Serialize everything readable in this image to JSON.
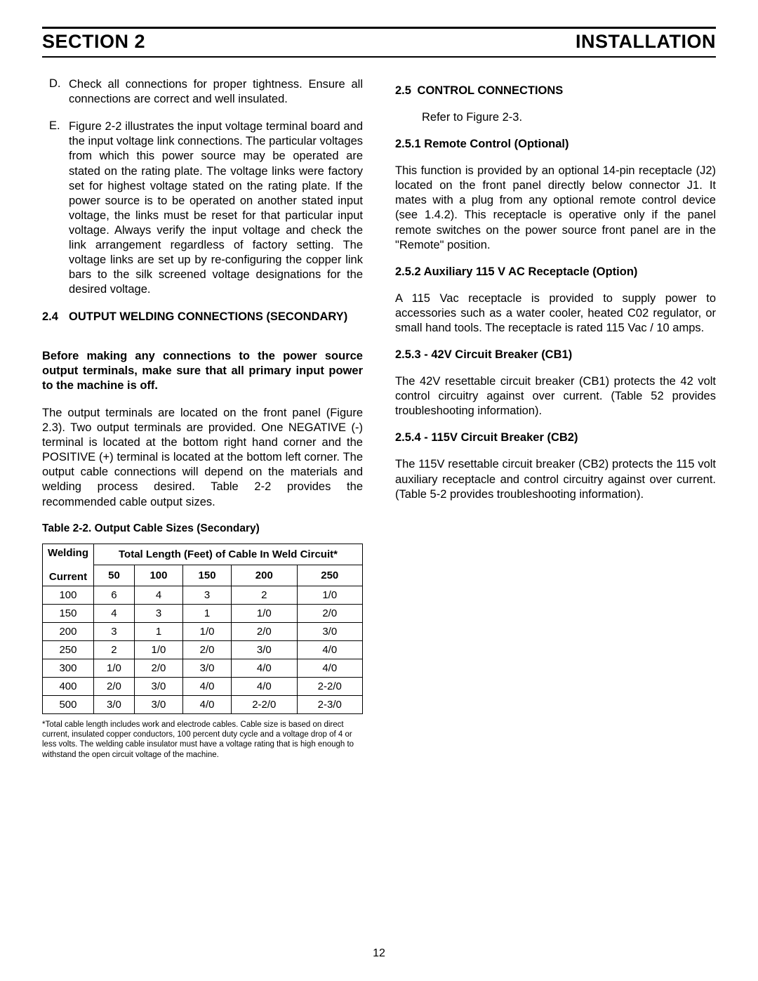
{
  "header": {
    "left": "SECTION 2",
    "right": "INSTALLATION"
  },
  "left_col": {
    "item_d": {
      "marker": "D.",
      "text": "Check all connections for proper tightness. Ensure all connections are correct and well insulated."
    },
    "item_e": {
      "marker": "E.",
      "text": "Figure 2-2 illustrates the input voltage terminal board and the input voltage link connections. The particular voltages from which this power source may be operated are stated on the rating plate. The voltage links were factory set for highest voltage stated on the rating plate. If the power source is to be operated on another stated input voltage, the links must be reset for that particular input voltage. Always verify the input voltage and check the link arrangement regardless of factory setting. The voltage links are set up by re-configuring the copper link bars to the silk screened voltage designations for the desired voltage."
    },
    "sec24": {
      "num": "2.4",
      "title": "OUTPUT  WELDING CONNECTIONS (SECONDARY)"
    },
    "warn": "Before making any connections to the power source output terminals, make sure that all primary input power to the machine is off.",
    "outp": "The output terminals are located on the front panel (Figure 2.3). Two output terminals are provided. One NEGATIVE (-) terminal is located at the bottom right hand corner and the POSITIVE (+) terminal is located at the bottom left corner. The output cable connections will depend on the materials and welding process desired. Table 2-2 provides the recommended cable output sizes.",
    "table_caption": "Table 2-2. Output Cable Sizes (Secondary)",
    "table": {
      "hdrA1": "Welding",
      "hdrA2": "Current",
      "hdrB": "Total Length (Feet) of Cable In Weld Circuit*",
      "cols": [
        "50",
        "100",
        "150",
        "200",
        "250"
      ],
      "rows": [
        [
          "100",
          "6",
          "4",
          "3",
          "2",
          "1/0"
        ],
        [
          "150",
          "4",
          "3",
          "1",
          "1/0",
          "2/0"
        ],
        [
          "200",
          "3",
          "1",
          "1/0",
          "2/0",
          "3/0"
        ],
        [
          "250",
          "2",
          "1/0",
          "2/0",
          "3/0",
          "4/0"
        ],
        [
          "300",
          "1/0",
          "2/0",
          "3/0",
          "4/0",
          "4/0"
        ],
        [
          "400",
          "2/0",
          "3/0",
          "4/0",
          "4/0",
          "2-2/0"
        ],
        [
          "500",
          "3/0",
          "3/0",
          "4/0",
          "2-2/0",
          "2-3/0"
        ]
      ]
    },
    "footnote": "*Total cable length includes work and electrode cables. Cable size is based on direct current, insulated copper conductors, 100 percent duty cycle and a voltage drop of 4 or less volts. The welding cable insulator must have a voltage rating that is high enough to withstand the open circuit voltage of the machine."
  },
  "right_col": {
    "sec25": {
      "num": "2.5",
      "title": "CONTROL CONNECTIONS"
    },
    "refer": "Refer to Figure 2-3.",
    "s251": {
      "title": "2.5.1 Remote Control (Optional)",
      "text": "This function is provided by an optional 14-pin receptacle (J2) located on the front panel directly below connector J1. It mates with a plug from any optional remote control device (see 1.4.2). This receptacle is operative only if the panel remote switches on the power source front panel are in the \"Remote\" position."
    },
    "s252": {
      "title": "2.5.2 Auxiliary 115 V AC Receptacle (Option)",
      "text": "A 115 Vac receptacle is provided to supply power to accessories such as a water cooler, heated C02 regulator, or small hand tools. The receptacle is rated 115 Vac / 10 amps."
    },
    "s253": {
      "title": "2.5.3 - 42V Circuit Breaker (CB1)",
      "text": "The 42V resettable circuit breaker (CB1) protects the 42 volt control circuitry against over current. (Table 52 provides troubleshooting information)."
    },
    "s254": {
      "title": "2.5.4 - 115V Circuit Breaker (CB2)",
      "text": "The 115V resettable circuit breaker (CB2) protects the 115 volt auxiliary receptacle and control circuitry against over current. (Table 5-2 provides troubleshooting information)."
    }
  },
  "page_number": "12"
}
